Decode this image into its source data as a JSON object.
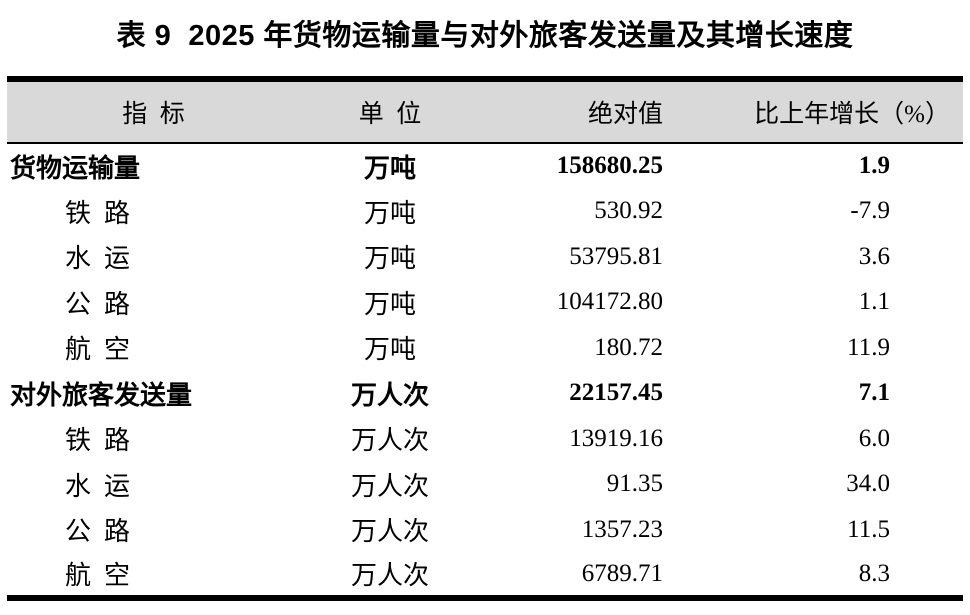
{
  "table": {
    "title": "表 9  2025 年货物运输量与对外旅客发送量及其增长速度",
    "header": {
      "indicator": "指  标",
      "unit": "单  位",
      "absolute": "绝对值",
      "growth": "比上年增长（%）"
    },
    "colors": {
      "header_bg": "#d9d9d9",
      "rule": "#000000",
      "text": "#000000",
      "page_bg": "#ffffff"
    },
    "rows": [
      {
        "indicator": "货物运输量",
        "unit": "万吨",
        "absolute": "158680.25",
        "growth": "1.9",
        "bold": true,
        "indent": false
      },
      {
        "indicator": "铁  路",
        "unit": "万吨",
        "absolute": "530.92",
        "growth": "-7.9",
        "bold": false,
        "indent": true
      },
      {
        "indicator": "水  运",
        "unit": "万吨",
        "absolute": "53795.81",
        "growth": "3.6",
        "bold": false,
        "indent": true
      },
      {
        "indicator": "公  路",
        "unit": "万吨",
        "absolute": "104172.80",
        "growth": "1.1",
        "bold": false,
        "indent": true
      },
      {
        "indicator": "航  空",
        "unit": "万吨",
        "absolute": "180.72",
        "growth": "11.9",
        "bold": false,
        "indent": true
      },
      {
        "indicator": "对外旅客发送量",
        "unit": "万人次",
        "absolute": "22157.45",
        "growth": "7.1",
        "bold": true,
        "indent": false
      },
      {
        "indicator": "铁  路",
        "unit": "万人次",
        "absolute": "13919.16",
        "growth": "6.0",
        "bold": false,
        "indent": true
      },
      {
        "indicator": "水  运",
        "unit": "万人次",
        "absolute": "91.35",
        "growth": "34.0",
        "bold": false,
        "indent": true
      },
      {
        "indicator": "公  路",
        "unit": "万人次",
        "absolute": "1357.23",
        "growth": "11.5",
        "bold": false,
        "indent": true
      },
      {
        "indicator": "航  空",
        "unit": "万人次",
        "absolute": "6789.71",
        "growth": "8.3",
        "bold": false,
        "indent": true
      }
    ]
  },
  "chart_data": {
    "type": "table",
    "title": "表9 2025年货物运输量与对外旅客发送量及其增长速度",
    "columns": [
      "指标",
      "单位",
      "绝对值",
      "比上年增长（%）"
    ],
    "rows": [
      [
        "货物运输量",
        "万吨",
        158680.25,
        1.9
      ],
      [
        "铁路",
        "万吨",
        530.92,
        -7.9
      ],
      [
        "水运",
        "万吨",
        53795.81,
        3.6
      ],
      [
        "公路",
        "万吨",
        104172.8,
        1.1
      ],
      [
        "航空",
        "万吨",
        180.72,
        11.9
      ],
      [
        "对外旅客发送量",
        "万人次",
        22157.45,
        7.1
      ],
      [
        "铁路",
        "万人次",
        13919.16,
        6.0
      ],
      [
        "水运",
        "万人次",
        91.35,
        34.0
      ],
      [
        "公路",
        "万人次",
        1357.23,
        11.5
      ],
      [
        "航空",
        "万人次",
        6789.71,
        8.3
      ]
    ]
  }
}
